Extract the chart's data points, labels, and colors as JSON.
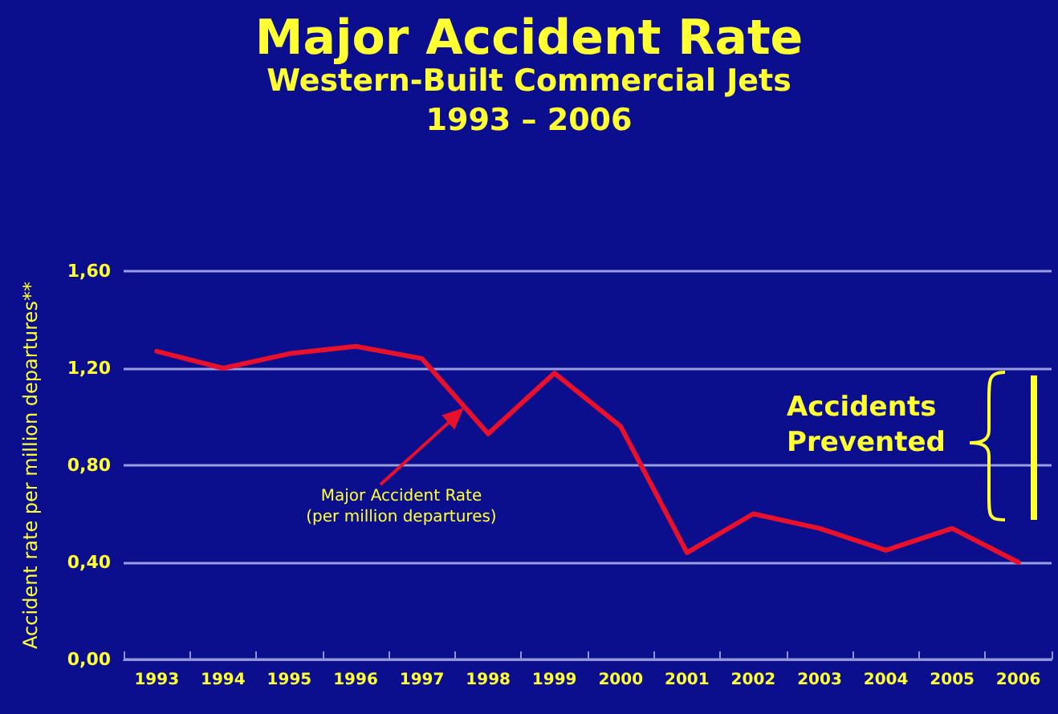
{
  "chart_data": {
    "type": "line",
    "title": "Major Accident Rate",
    "subtitle": "Western-Built Commercial Jets",
    "ylabel": "Accident rate per million departures**",
    "categories": [
      "1993",
      "1994",
      "1995",
      "1996",
      "1997",
      "1998",
      "1999",
      "2000",
      "2001",
      "2002",
      "2003",
      "2004",
      "2005",
      "2006"
    ],
    "series": [
      {
        "color": "#e8102a",
        "values": [
          1.27,
          1.2,
          1.26,
          1.29,
          1.24,
          0.93,
          1.18,
          0.96,
          0.44,
          0.6,
          0.54,
          0.45,
          0.54,
          0.4
        ]
      }
    ],
    "ylim": [
      0,
      1.6
    ],
    "yticks": [
      {
        "value": 0,
        "label": "0,00"
      },
      {
        "value": 0.4,
        "label": "0,40"
      },
      {
        "value": 0.8,
        "label": "0,80"
      },
      {
        "value": 1.2,
        "label": "1,20"
      },
      {
        "value": 1.6,
        "label": "1,60"
      }
    ],
    "grid": "y",
    "marker": "none",
    "line_style": "solid",
    "annotations": [
      "1993 – 2006",
      "Major Accident Rate\n(per million departures)",
      "Accidents\nPrevented"
    ]
  }
}
